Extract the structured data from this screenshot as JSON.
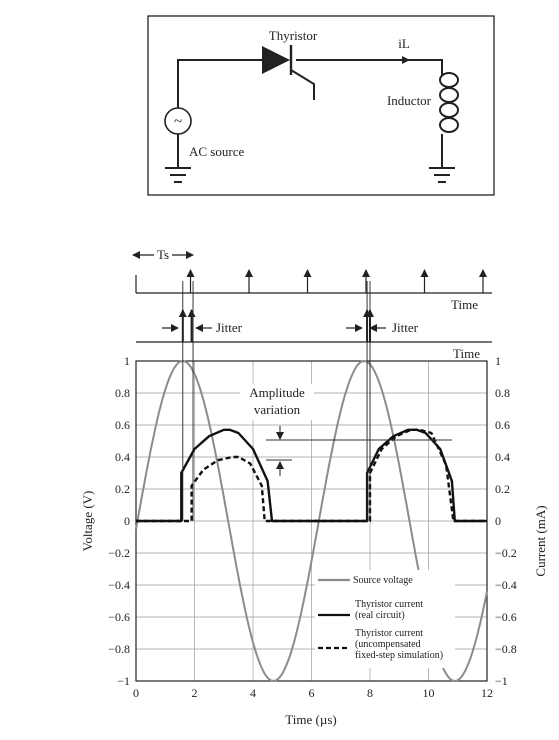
{
  "circuit": {
    "thyristor_label": "Thyristor",
    "current_label": "iL",
    "inductor_label": "Inductor",
    "source_label": "AC source",
    "source_symbol": "~"
  },
  "timing": {
    "ts_label": "Ts",
    "jitter_label_1": "Jitter",
    "jitter_label_2": "Jitter",
    "time_label_1": "Time",
    "time_label_2": "Time",
    "pulse_times": [
      2,
      4,
      6,
      8,
      10,
      12
    ],
    "jittered_pulse_times": [
      1.6,
      1.9,
      7.9,
      8.0
    ]
  },
  "annotation": {
    "amplitude_line1": "Amplitude",
    "amplitude_line2": "variation"
  },
  "chart_data": {
    "type": "line",
    "xlabel": "Time (µs)",
    "ylabel_left": "Voltage (V)",
    "ylabel_right": "Current (mA)",
    "xlim": [
      0,
      12
    ],
    "ylim": [
      -1,
      1
    ],
    "x_ticks": [
      "0",
      "2",
      "4",
      "6",
      "8",
      "10",
      "12"
    ],
    "y_ticks": [
      "1",
      "0.8",
      "0.6",
      "0.4",
      "0.2",
      "0",
      "−0.2",
      "−0.4",
      "−0.6",
      "−0.8",
      "−1"
    ],
    "grid": true,
    "legend_position": "bottom-right",
    "series": [
      {
        "name": "Source voltage",
        "color": "#8c8c8c",
        "style": "solid",
        "x": [
          0,
          0.5,
          1,
          1.5,
          2,
          2.5,
          3,
          3.5,
          4,
          4.5,
          5,
          5.5,
          6,
          6.5,
          7,
          7.5,
          8,
          8.5,
          9,
          9.5,
          10,
          10.5,
          11,
          11.5,
          12
        ],
        "y": [
          0.0,
          0.5,
          0.87,
          1.0,
          0.87,
          0.5,
          0.0,
          -0.5,
          -0.87,
          -1.0,
          -0.87,
          -0.5,
          0.0,
          0.5,
          0.87,
          1.0,
          0.87,
          0.5,
          0.0,
          -0.5,
          -0.87,
          -1.0,
          -0.87,
          -0.5,
          0.0
        ]
      },
      {
        "name": "Thyristor current (real circuit)",
        "legend_lines": [
          "Thyristor current",
          "(real circuit)"
        ],
        "color": "#111111",
        "style": "solid",
        "x": [
          0,
          1.55,
          1.55,
          2.0,
          2.5,
          3.0,
          3.2,
          3.5,
          4.0,
          4.5,
          4.65,
          4.65,
          7.9,
          7.9,
          8.3,
          8.8,
          9.3,
          9.6,
          9.9,
          10.4,
          10.8,
          10.9,
          10.9,
          12
        ],
        "y": [
          0.0,
          0.0,
          0.3,
          0.45,
          0.53,
          0.57,
          0.57,
          0.55,
          0.45,
          0.25,
          0.0,
          0.0,
          0.0,
          0.3,
          0.45,
          0.53,
          0.57,
          0.57,
          0.55,
          0.45,
          0.25,
          0.0,
          0.0,
          0.0
        ]
      },
      {
        "name": "Thyristor current (uncompensated fixed-step simulation)",
        "legend_lines": [
          "Thyristor current",
          "(uncompensated",
          "fixed-step simulation)"
        ],
        "color": "#111111",
        "style": "dashed",
        "x": [
          0,
          1.9,
          1.9,
          2.3,
          2.8,
          3.3,
          3.5,
          3.9,
          4.3,
          4.4,
          4.4,
          8.0,
          8.0,
          8.4,
          8.9,
          9.4,
          9.7,
          10.1,
          10.6,
          10.85,
          10.85,
          12
        ],
        "y": [
          0.0,
          0.0,
          0.22,
          0.32,
          0.38,
          0.4,
          0.4,
          0.36,
          0.22,
          0.0,
          0.0,
          0.0,
          0.3,
          0.45,
          0.53,
          0.57,
          0.57,
          0.55,
          0.35,
          0.0,
          0.0,
          0.0
        ]
      }
    ]
  }
}
